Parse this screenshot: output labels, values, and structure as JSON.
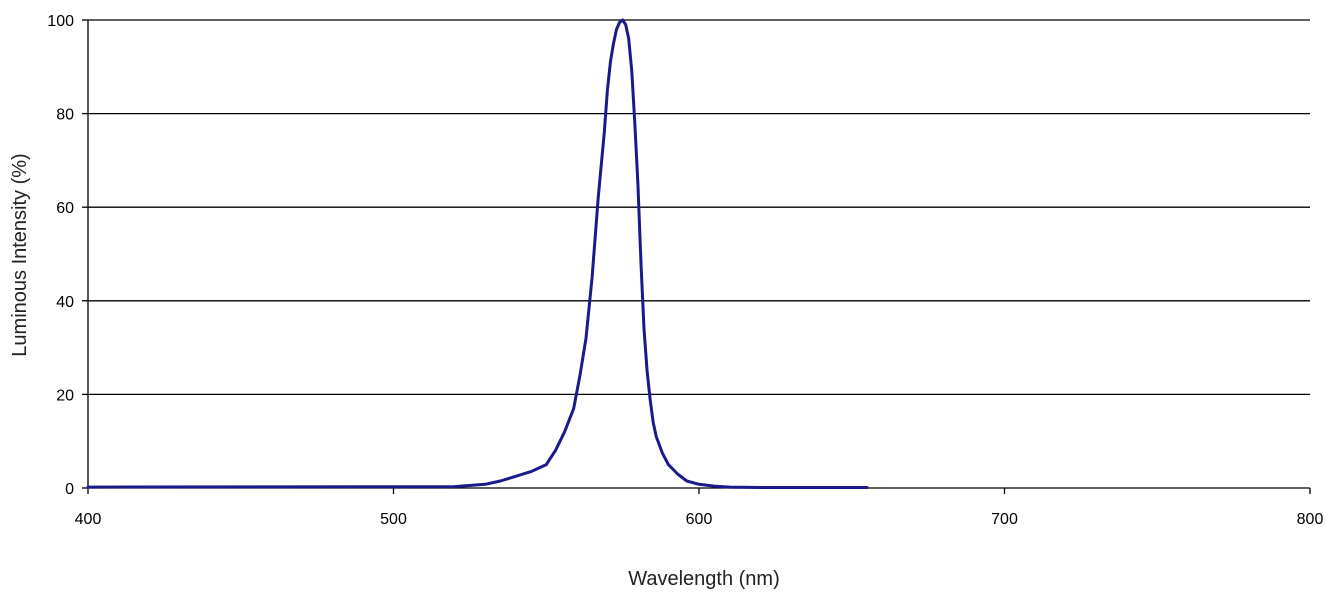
{
  "chart_data": {
    "type": "line",
    "title": "",
    "xlabel": "Wavelength (nm)",
    "ylabel": "Luminous Intensity (%)",
    "xlim": [
      400,
      800
    ],
    "ylim": [
      0,
      100
    ],
    "xticks": [
      "400",
      "500",
      "600",
      "700",
      "800"
    ],
    "yticks": [
      "0",
      "20",
      "40",
      "60",
      "80",
      "100"
    ],
    "grid": "horizontal",
    "legend": "none",
    "series": [
      {
        "color": "#1a1a8c",
        "x": [
          400,
          520,
          530,
          535,
          540,
          545,
          550,
          553,
          556,
          559,
          561,
          563,
          565,
          567,
          569,
          570,
          571,
          572,
          573,
          574,
          575,
          576,
          577,
          578,
          579,
          580,
          581,
          582,
          583,
          584,
          585,
          586,
          588,
          590,
          593,
          596,
          600,
          605,
          610,
          620,
          655
        ],
        "y": [
          0.2,
          0.3,
          0.8,
          1.5,
          2.5,
          3.5,
          5.0,
          8.0,
          12.0,
          17.0,
          24.0,
          32.0,
          45.0,
          62.0,
          76.0,
          85.0,
          91.0,
          95.0,
          98.0,
          99.5,
          100.0,
          99.0,
          96.0,
          89.0,
          78.0,
          65.0,
          48.0,
          34.0,
          25.0,
          19.0,
          14.0,
          11.0,
          7.5,
          5.0,
          3.0,
          1.5,
          0.8,
          0.4,
          0.2,
          0.1,
          0.1
        ]
      }
    ]
  }
}
